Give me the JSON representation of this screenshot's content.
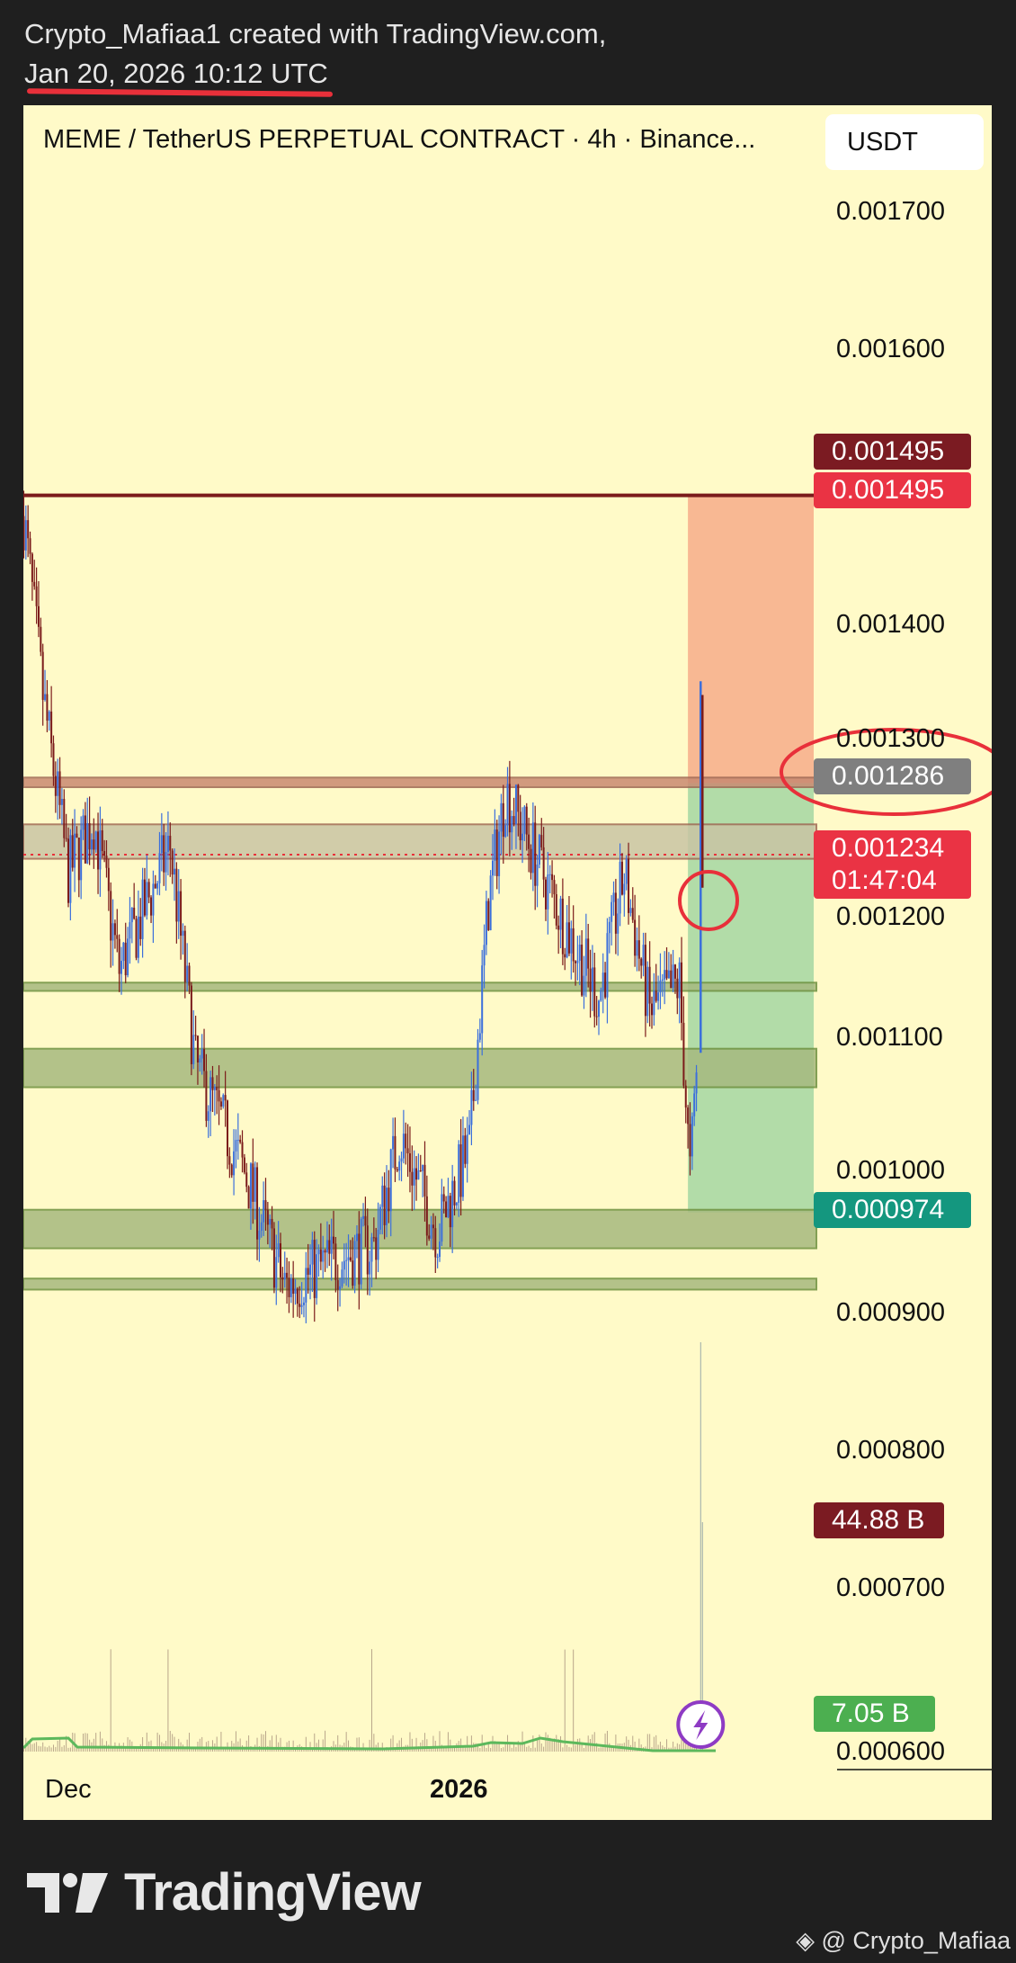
{
  "header": {
    "line1": "Crypto_Mafiaa1 created with TradingView.com,",
    "line2": "Jan 20, 2026 10:12 UTC"
  },
  "chart_header": {
    "title": "MEME / TetherUS PERPETUAL CONTRACT · 4h · Binance...",
    "currency_button": "USDT"
  },
  "footer": {
    "logo": "TradingView",
    "watermark": "@ Crypto_Mafiaa"
  },
  "colors": {
    "up": "#3b6fdc",
    "down": "#7b1b1b",
    "zone_fill": "#a6b97f",
    "zone_border": "#6e9140",
    "stop": "#f7ab8a",
    "target": "#9fd5a0",
    "annotation": "#e8303a",
    "volume_ma": "#5cb85c"
  },
  "chart_data": {
    "type": "candlestick",
    "timeframe": "4h",
    "x_tick_labels": [
      {
        "label": "Dec",
        "date": "2025-12-01"
      },
      {
        "label": "2026",
        "date": "2026-01-01"
      }
    ],
    "y_tick_labels": [
      "0.001700",
      "0.001600",
      "0.001400",
      "0.001300",
      "0.001200",
      "0.001100",
      "0.001000",
      "0.000900",
      "0.000800",
      "0.000700",
      "0.000600"
    ],
    "ylim": [
      0.00058,
      0.00178
    ],
    "price_path_approx": [
      [
        "2025-11-27T12:00",
        0.00148
      ],
      [
        "2025-11-29T00:00",
        0.00135
      ],
      [
        "2025-12-01T00:00",
        0.00122
      ],
      [
        "2025-12-03T00:00",
        0.00126
      ],
      [
        "2025-12-05T00:00",
        0.00115
      ],
      [
        "2025-12-09T00:00",
        0.00124
      ],
      [
        "2025-12-11T00:00",
        0.00108
      ],
      [
        "2025-12-15T00:00",
        0.001
      ],
      [
        "2025-12-18T00:00",
        0.00092
      ],
      [
        "2025-12-22T00:00",
        0.00094
      ],
      [
        "2025-12-25T00:00",
        0.00095
      ],
      [
        "2025-12-27T00:00",
        0.00103
      ],
      [
        "2025-12-30T00:00",
        0.00096
      ],
      [
        "2026-01-01T12:00",
        0.00102
      ],
      [
        "2026-01-03T00:00",
        0.0012
      ],
      [
        "2026-01-04T08:00",
        0.00128
      ],
      [
        "2026-01-06T08:00",
        0.00124
      ],
      [
        "2026-01-08T16:00",
        0.00119
      ],
      [
        "2026-01-11T16:00",
        0.00113
      ],
      [
        "2026-01-13T16:00",
        0.00122
      ],
      [
        "2026-01-15T16:00",
        0.00112
      ],
      [
        "2026-01-18T00:00",
        0.00114
      ],
      [
        "2026-01-18T20:00",
        0.001
      ],
      [
        "2026-01-19T12:00",
        0.0011
      ]
    ],
    "last_candle": {
      "open": 0.0011,
      "high": 0.00136,
      "low": 0.00109,
      "close": 0.001234
    },
    "horizontal_levels": [
      {
        "price": 0.001495,
        "style": "solid",
        "color": "#7b1b1b"
      },
      {
        "price": 0.001234,
        "style": "dotted",
        "color": "#e8303a"
      }
    ],
    "zones": [
      {
        "top": 0.00129,
        "bottom": 0.001283,
        "fill": "#c98a72"
      },
      {
        "top": 0.001256,
        "bottom": 0.001231,
        "fill": "#c9c4a4"
      },
      {
        "top": 0.001141,
        "bottom": 0.001135,
        "fill": "#a6b97f"
      },
      {
        "top": 0.001093,
        "bottom": 0.001065,
        "fill": "#a6b97f"
      },
      {
        "top": 0.000976,
        "bottom": 0.000948,
        "fill": "#a6b97f"
      },
      {
        "top": 0.000926,
        "bottom": 0.000918,
        "fill": "#a6b97f"
      }
    ],
    "position": {
      "stop": 0.001495,
      "entry": 0.001286,
      "target": 0.000974,
      "start": "2026-01-18T16:00"
    },
    "tags": {
      "stop_line": "0.001495",
      "stop_price": "0.001495",
      "entry": "0.001286",
      "last_price": "0.001234",
      "countdown": "01:47:04",
      "target": "0.000974",
      "volume_high": "44.88 B",
      "volume_current": "7.05 B"
    }
  }
}
